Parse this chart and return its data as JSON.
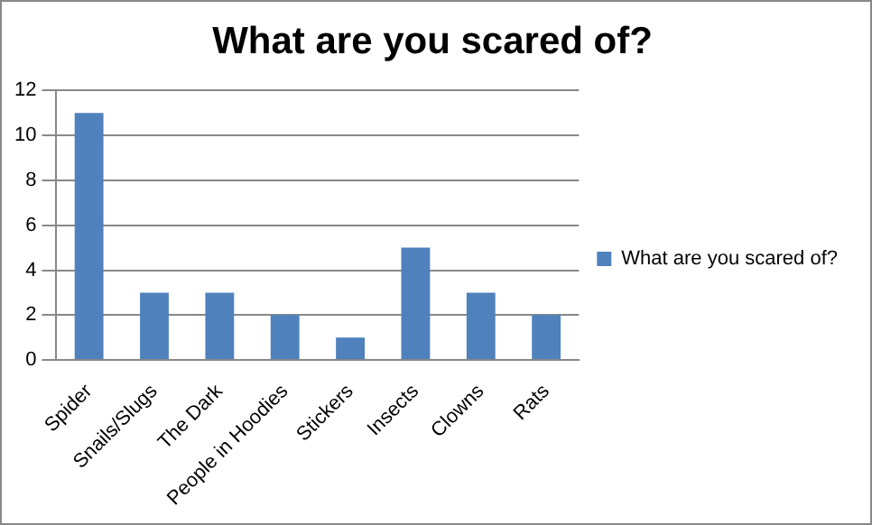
{
  "chart_data": {
    "type": "bar",
    "title": "What are you scared of?",
    "categories": [
      "Spider",
      "Snails/Slugs",
      "The Dark",
      "People in Hoodies",
      "Stickers",
      "Insects",
      "Clowns",
      "Rats"
    ],
    "series": [
      {
        "name": "What are you scared of?",
        "color": "#4f81bd",
        "values": [
          11,
          3,
          3,
          2,
          1,
          5,
          3,
          2
        ]
      }
    ],
    "ylim": [
      0,
      12
    ],
    "yticks": [
      0,
      2,
      4,
      6,
      8,
      10,
      12
    ],
    "grid": "y",
    "legend": "right"
  }
}
